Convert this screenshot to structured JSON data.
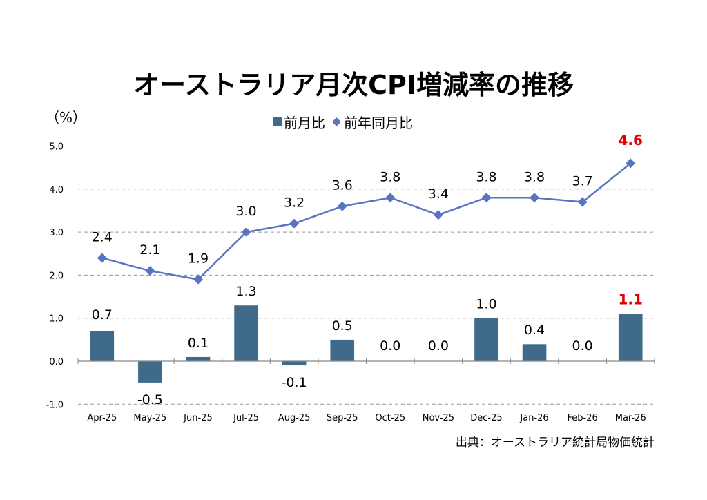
{
  "title": "オーストラリア月次CPI増減率の推移",
  "unit_label": "（%）",
  "legend": [
    {
      "name": "前月比",
      "marker": "square",
      "color": "#3F6A8A"
    },
    {
      "name": "前年同月比",
      "marker": "diamond",
      "color": "#5773C4"
    }
  ],
  "source": "出典：オーストラリア統計局物価統計",
  "highlight_color": "#E00000",
  "chart_data": {
    "type": "bar+line",
    "title": "オーストラリア月次CPI増減率の推移",
    "xlabel": "",
    "ylabel": "（%）",
    "ylim": [
      -1.0,
      5.0
    ],
    "yticks": [
      5.0,
      4.0,
      3.0,
      2.0,
      1.0,
      0.0,
      -1.0
    ],
    "ytick_labels": [
      "5.0",
      "4.0",
      "3.0",
      "2.0",
      "1.0",
      "0.0",
      "-1.0"
    ],
    "grid": "horizontal dashed",
    "legend_position": "top-center",
    "categories": [
      "Apr-25",
      "May-25",
      "Jun-25",
      "Jul-25",
      "Aug-25",
      "Sep-25",
      "Oct-25",
      "Nov-25",
      "Dec-25",
      "Jan-26",
      "Feb-26",
      "Mar-26"
    ],
    "series": [
      {
        "name": "前月比",
        "type": "bar",
        "color": "#3F6A8A",
        "values": [
          0.7,
          -0.5,
          0.1,
          1.3,
          -0.1,
          0.5,
          0.0,
          0.0,
          1.0,
          0.4,
          0.0,
          1.1
        ],
        "labels": [
          "0.7",
          "-0.5",
          "0.1",
          "1.3",
          "-0.1",
          "0.5",
          "0.0",
          "0.0",
          "1.0",
          "0.4",
          "0.0",
          "1.1"
        ],
        "highlight_index": 11
      },
      {
        "name": "前年同月比",
        "type": "line",
        "marker": "diamond",
        "color": "#5773C4",
        "values": [
          2.4,
          2.1,
          1.9,
          3.0,
          3.2,
          3.6,
          3.8,
          3.4,
          3.8,
          3.8,
          3.7,
          4.6
        ],
        "labels": [
          "2.4",
          "2.1",
          "1.9",
          "3.0",
          "3.2",
          "3.6",
          "3.8",
          "3.4",
          "3.8",
          "3.8",
          "3.7",
          "4.6"
        ],
        "highlight_index": 11
      }
    ]
  }
}
